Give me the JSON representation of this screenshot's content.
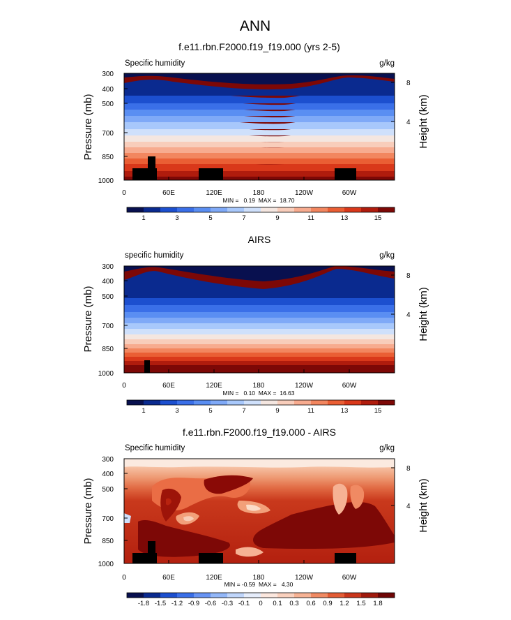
{
  "figure": {
    "title": "ANN",
    "labels": {
      "left_var_ctrl": "Specific humidity",
      "left_var_airs": "specific humidity",
      "units": "g/kg",
      "ylabel": "Pressure (mb)",
      "ylabel_right": "Height (km)"
    }
  },
  "colors": {
    "seq": [
      "#08104f",
      "#0a2a8f",
      "#1c4fcf",
      "#3a6fe8",
      "#5a8ef2",
      "#7fa9f7",
      "#a8c8fb",
      "#cfe0fb",
      "#f4e6e0",
      "#f8cdbb",
      "#f7ab8f",
      "#f2865f",
      "#ea5e34",
      "#d9381a",
      "#b01c0d",
      "#7d0806"
    ],
    "diff": [
      "#08104f",
      "#0a2a8f",
      "#1c4fcf",
      "#3a6fe8",
      "#6793f3",
      "#93b7f8",
      "#c0d6fb",
      "#e6edfb",
      "#fbe7de",
      "#f9d0bd",
      "#f6b294",
      "#f08a63",
      "#e35c35",
      "#c9361b",
      "#a01a0d",
      "#6f0606"
    ]
  },
  "chart_data": [
    {
      "type": "heatmap",
      "title": "f.e11.rbn.F2000.f19_f19.000 (yrs 2-5)",
      "xlabel": "",
      "ylabel": "Pressure (mb)",
      "y2label": "Height (km)",
      "x_ticks": [
        "0",
        "60E",
        "120E",
        "180",
        "120W",
        "60W"
      ],
      "y_ticks": [
        "300",
        "400",
        "500",
        "700",
        "850",
        "1000"
      ],
      "y2_ticks": [
        "8",
        "4"
      ],
      "xlim": [
        0,
        360
      ],
      "ylim": [
        1000,
        300
      ],
      "stats": "MIN =   0.19  MAX =  18.70",
      "colorbar_labels": [
        "1",
        "3",
        "5",
        "7",
        "9",
        "11",
        "13",
        "15"
      ],
      "units": "g/kg",
      "min": 0.19,
      "max": 18.7
    },
    {
      "type": "heatmap",
      "title": "AIRS",
      "xlabel": "",
      "ylabel": "Pressure (mb)",
      "y2label": "Height (km)",
      "x_ticks": [
        "0",
        "60E",
        "120E",
        "180",
        "120W",
        "60W"
      ],
      "y_ticks": [
        "300",
        "400",
        "500",
        "700",
        "850",
        "1000"
      ],
      "y2_ticks": [
        "8",
        "4"
      ],
      "xlim": [
        0,
        360
      ],
      "ylim": [
        1000,
        300
      ],
      "stats": "MIN =   0.10  MAX =  16.63",
      "colorbar_labels": [
        "1",
        "3",
        "5",
        "7",
        "9",
        "11",
        "13",
        "15"
      ],
      "units": "g/kg",
      "min": 0.1,
      "max": 16.63
    },
    {
      "type": "heatmap",
      "title": "f.e11.rbn.F2000.f19_f19.000 - AIRS",
      "xlabel": "",
      "ylabel": "Pressure (mb)",
      "y2label": "Height (km)",
      "x_ticks": [
        "0",
        "60E",
        "120E",
        "180",
        "120W",
        "60W"
      ],
      "y_ticks": [
        "300",
        "400",
        "500",
        "700",
        "850",
        "1000"
      ],
      "y2_ticks": [
        "8",
        "4"
      ],
      "xlim": [
        0,
        360
      ],
      "ylim": [
        1000,
        300
      ],
      "stats": "MIN = -0.59  MAX =   4.30",
      "colorbar_labels": [
        "-1.8",
        "-1.5",
        "-1.2",
        "-0.9",
        "-0.6",
        "-0.3",
        "-0.1",
        "0",
        "0.1",
        "0.3",
        "0.6",
        "0.9",
        "1.2",
        "1.5",
        "1.8"
      ],
      "units": "g/kg",
      "min": -0.59,
      "max": 4.3
    }
  ]
}
